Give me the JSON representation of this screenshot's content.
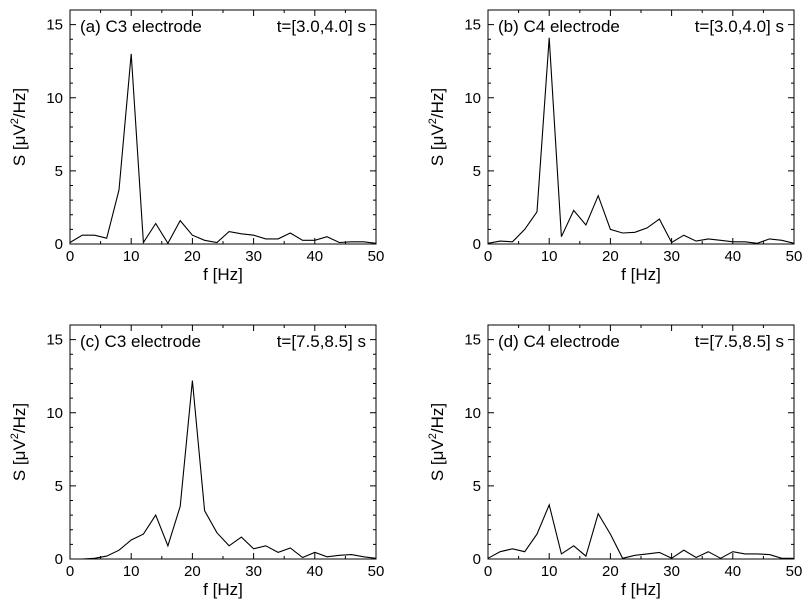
{
  "chart_data": [
    {
      "type": "line",
      "panel": "a",
      "label": "(a) C3 electrode",
      "time": "t=[3.0,4.0] s",
      "xlabel": "f [Hz]",
      "ylabel_prefix": "S  [",
      "ylabel_mu": "μ",
      "ylabel_v": "V",
      "ylabel_sup": "2",
      "ylabel_suffix": "/Hz]",
      "xlim": [
        0,
        50
      ],
      "ylim": [
        0,
        16
      ],
      "xticks": [
        0,
        10,
        20,
        30,
        40,
        50
      ],
      "yticks": [
        0,
        5,
        10,
        15
      ],
      "x": [
        0,
        2,
        4,
        6,
        8,
        10,
        12,
        14,
        16,
        18,
        20,
        22,
        24,
        26,
        28,
        30,
        32,
        34,
        36,
        38,
        40,
        42,
        44,
        46,
        48,
        50
      ],
      "values": [
        0.1,
        0.6,
        0.6,
        0.4,
        3.7,
        13.0,
        0.1,
        1.4,
        0.05,
        1.6,
        0.6,
        0.25,
        0.1,
        0.85,
        0.7,
        0.6,
        0.35,
        0.35,
        0.75,
        0.25,
        0.25,
        0.5,
        0.1,
        0.15,
        0.15,
        0.05
      ]
    },
    {
      "type": "line",
      "panel": "b",
      "label": "(b) C4 electrode",
      "time": "t=[3.0,4.0] s",
      "xlabel": "f [Hz]",
      "ylabel_prefix": "S  [",
      "ylabel_mu": "μ",
      "ylabel_v": "V",
      "ylabel_sup": "2",
      "ylabel_suffix": "/Hz]",
      "xlim": [
        0,
        50
      ],
      "ylim": [
        0,
        16
      ],
      "xticks": [
        0,
        10,
        20,
        30,
        40,
        50
      ],
      "yticks": [
        0,
        5,
        10,
        15
      ],
      "x": [
        0,
        2,
        4,
        6,
        8,
        10,
        12,
        14,
        16,
        18,
        20,
        22,
        24,
        26,
        28,
        30,
        32,
        34,
        36,
        38,
        40,
        42,
        44,
        46,
        48,
        50
      ],
      "values": [
        0.05,
        0.2,
        0.15,
        1.0,
        2.2,
        14.1,
        0.5,
        2.3,
        1.3,
        3.3,
        1.0,
        0.75,
        0.8,
        1.1,
        1.7,
        0.1,
        0.6,
        0.2,
        0.35,
        0.25,
        0.15,
        0.15,
        0.05,
        0.35,
        0.25,
        0.05
      ]
    },
    {
      "type": "line",
      "panel": "c",
      "label": "(c) C3 electrode",
      "time": "t=[7.5,8.5] s",
      "xlabel": "f [Hz]",
      "ylabel_prefix": "S  [",
      "ylabel_mu": "μ",
      "ylabel_v": "V",
      "ylabel_sup": "2",
      "ylabel_suffix": "/Hz]",
      "xlim": [
        0,
        50
      ],
      "ylim": [
        0,
        16
      ],
      "xticks": [
        0,
        10,
        20,
        30,
        40,
        50
      ],
      "yticks": [
        0,
        5,
        10,
        15
      ],
      "x": [
        0,
        2,
        4,
        6,
        8,
        10,
        12,
        14,
        16,
        18,
        20,
        22,
        24,
        26,
        28,
        30,
        32,
        34,
        36,
        38,
        40,
        42,
        44,
        46,
        48,
        50
      ],
      "values": [
        0,
        0,
        0.05,
        0.2,
        0.6,
        1.3,
        1.7,
        3.0,
        0.9,
        3.6,
        12.2,
        3.3,
        1.8,
        0.9,
        1.5,
        0.7,
        0.9,
        0.45,
        0.75,
        0.1,
        0.45,
        0.15,
        0.25,
        0.3,
        0.15,
        0.05
      ]
    },
    {
      "type": "line",
      "panel": "d",
      "label": "(d) C4 electrode",
      "time": "t=[7.5,8.5] s",
      "xlabel": "f [Hz]",
      "ylabel_prefix": "S  [",
      "ylabel_mu": "μ",
      "ylabel_v": "V",
      "ylabel_sup": "2",
      "ylabel_suffix": "/Hz]",
      "xlim": [
        0,
        50
      ],
      "ylim": [
        0,
        16
      ],
      "xticks": [
        0,
        10,
        20,
        30,
        40,
        50
      ],
      "yticks": [
        0,
        5,
        10,
        15
      ],
      "x": [
        0,
        2,
        4,
        6,
        8,
        10,
        12,
        14,
        16,
        18,
        20,
        22,
        24,
        26,
        28,
        30,
        32,
        34,
        36,
        38,
        40,
        42,
        44,
        46,
        48,
        50
      ],
      "values": [
        0.05,
        0.5,
        0.7,
        0.5,
        1.7,
        3.7,
        0.35,
        0.9,
        0.2,
        3.1,
        1.7,
        0.05,
        0.25,
        0.35,
        0.45,
        0.05,
        0.6,
        0.1,
        0.5,
        0.05,
        0.5,
        0.35,
        0.35,
        0.3,
        0.05,
        0.05
      ]
    }
  ]
}
